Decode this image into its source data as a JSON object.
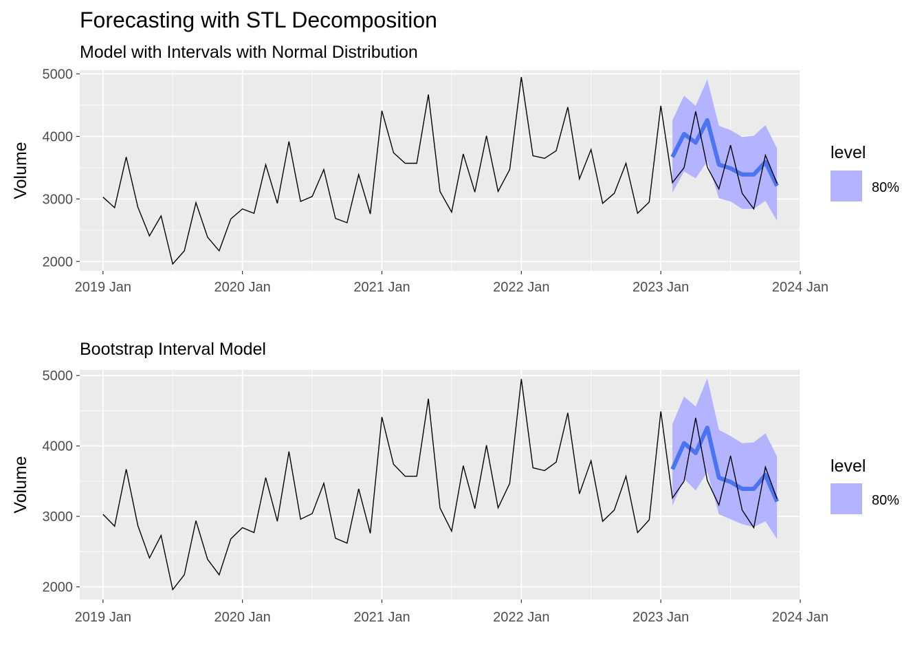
{
  "figure": {
    "title": "Forecasting with STL Decomposition"
  },
  "chart_data": [
    {
      "type": "line",
      "subtitle": "Model with Intervals with Normal Distribution",
      "xlabel": "",
      "ylabel": "Volume",
      "x_ticks": [
        "2019 Jan",
        "2020 Jan",
        "2021 Jan",
        "2022 Jan",
        "2023 Jan",
        "2024 Jan"
      ],
      "y_ticks": [
        2000,
        3000,
        4000,
        5000
      ],
      "xlim": [
        "2018 Nov",
        "2024 Jan"
      ],
      "ylim": [
        1850,
        5060
      ],
      "grid": true,
      "legend": {
        "title": "level",
        "entries": [
          "80%"
        ],
        "position": "right"
      },
      "colors": {
        "observed": "#000000",
        "forecast": "#4a74f0",
        "interval": "#b3b3ff",
        "panel": "#ebebeb"
      },
      "observed": {
        "x": [
          "2019-01",
          "2019-02",
          "2019-03",
          "2019-04",
          "2019-05",
          "2019-06",
          "2019-07",
          "2019-08",
          "2019-09",
          "2019-10",
          "2019-11",
          "2019-12",
          "2020-01",
          "2020-02",
          "2020-03",
          "2020-04",
          "2020-05",
          "2020-06",
          "2020-07",
          "2020-08",
          "2020-09",
          "2020-10",
          "2020-11",
          "2020-12",
          "2021-01",
          "2021-02",
          "2021-03",
          "2021-04",
          "2021-05",
          "2021-06",
          "2021-07",
          "2021-08",
          "2021-09",
          "2021-10",
          "2021-11",
          "2021-12",
          "2022-01",
          "2022-02",
          "2022-03",
          "2022-04",
          "2022-05",
          "2022-06",
          "2022-07",
          "2022-08",
          "2022-09",
          "2022-10",
          "2022-11",
          "2022-12",
          "2023-01",
          "2023-02",
          "2023-03",
          "2023-04",
          "2023-05",
          "2023-06",
          "2023-07",
          "2023-08",
          "2023-09",
          "2023-10",
          "2023-11"
        ],
        "values": [
          3030,
          2860,
          3670,
          2870,
          2410,
          2730,
          1960,
          2170,
          2940,
          2390,
          2170,
          2680,
          2840,
          2770,
          3550,
          2930,
          3920,
          2960,
          3040,
          3470,
          2690,
          2620,
          3390,
          2760,
          4410,
          3740,
          3570,
          3570,
          4670,
          3120,
          2790,
          3720,
          3110,
          4010,
          3120,
          3470,
          4950,
          3690,
          3650,
          3770,
          4470,
          3320,
          3790,
          2930,
          3090,
          3570,
          2770,
          2950,
          4490,
          3260,
          3500,
          4400,
          3510,
          3160,
          3860,
          3090,
          2840,
          3700,
          3250
        ]
      },
      "forecast": {
        "x": [
          "2023-02",
          "2023-03",
          "2023-04",
          "2023-05",
          "2023-06",
          "2023-07",
          "2023-08",
          "2023-09",
          "2023-10",
          "2023-11"
        ],
        "mean": [
          3670,
          4040,
          3900,
          4260,
          3550,
          3490,
          3390,
          3390,
          3590,
          3210
        ],
        "lower": [
          3100,
          3440,
          3330,
          3600,
          3010,
          2960,
          2840,
          2840,
          2970,
          2650
        ],
        "upper": [
          4260,
          4650,
          4490,
          4910,
          4170,
          4100,
          3990,
          4010,
          4180,
          3810
        ]
      }
    },
    {
      "type": "line",
      "subtitle": "Bootstrap Interval Model",
      "xlabel": "",
      "ylabel": "Volume",
      "x_ticks": [
        "2019 Jan",
        "2020 Jan",
        "2021 Jan",
        "2022 Jan",
        "2023 Jan",
        "2024 Jan"
      ],
      "y_ticks": [
        2000,
        3000,
        4000,
        5000
      ],
      "xlim": [
        "2018 Nov",
        "2024 Jan"
      ],
      "ylim": [
        1820,
        5080
      ],
      "grid": true,
      "legend": {
        "title": "level",
        "entries": [
          "80%"
        ],
        "position": "right"
      },
      "colors": {
        "observed": "#000000",
        "forecast": "#4a74f0",
        "interval": "#b3b3ff",
        "panel": "#ebebeb"
      },
      "observed": {
        "x": [
          "2019-01",
          "2019-02",
          "2019-03",
          "2019-04",
          "2019-05",
          "2019-06",
          "2019-07",
          "2019-08",
          "2019-09",
          "2019-10",
          "2019-11",
          "2019-12",
          "2020-01",
          "2020-02",
          "2020-03",
          "2020-04",
          "2020-05",
          "2020-06",
          "2020-07",
          "2020-08",
          "2020-09",
          "2020-10",
          "2020-11",
          "2020-12",
          "2021-01",
          "2021-02",
          "2021-03",
          "2021-04",
          "2021-05",
          "2021-06",
          "2021-07",
          "2021-08",
          "2021-09",
          "2021-10",
          "2021-11",
          "2021-12",
          "2022-01",
          "2022-02",
          "2022-03",
          "2022-04",
          "2022-05",
          "2022-06",
          "2022-07",
          "2022-08",
          "2022-09",
          "2022-10",
          "2022-11",
          "2022-12",
          "2023-01",
          "2023-02",
          "2023-03",
          "2023-04",
          "2023-05",
          "2023-06",
          "2023-07",
          "2023-08",
          "2023-09",
          "2023-10",
          "2023-11"
        ],
        "values": [
          3030,
          2860,
          3670,
          2870,
          2410,
          2730,
          1960,
          2170,
          2940,
          2390,
          2170,
          2680,
          2840,
          2770,
          3550,
          2930,
          3920,
          2960,
          3040,
          3470,
          2690,
          2620,
          3390,
          2760,
          4410,
          3740,
          3570,
          3570,
          4670,
          3120,
          2790,
          3720,
          3110,
          4010,
          3120,
          3470,
          4950,
          3690,
          3650,
          3770,
          4470,
          3320,
          3790,
          2930,
          3090,
          3570,
          2770,
          2950,
          4490,
          3260,
          3500,
          4400,
          3510,
          3160,
          3860,
          3090,
          2840,
          3700,
          3250
        ]
      },
      "forecast": {
        "x": [
          "2023-02",
          "2023-03",
          "2023-04",
          "2023-05",
          "2023-06",
          "2023-07",
          "2023-08",
          "2023-09",
          "2023-10",
          "2023-11"
        ],
        "mean": [
          3670,
          4040,
          3900,
          4260,
          3550,
          3490,
          3390,
          3390,
          3590,
          3210
        ],
        "lower": [
          3150,
          3530,
          3370,
          3630,
          3030,
          2960,
          2890,
          2850,
          2930,
          2680
        ],
        "upper": [
          4310,
          4700,
          4560,
          4960,
          4230,
          4140,
          4040,
          4050,
          4180,
          3850
        ]
      }
    }
  ]
}
